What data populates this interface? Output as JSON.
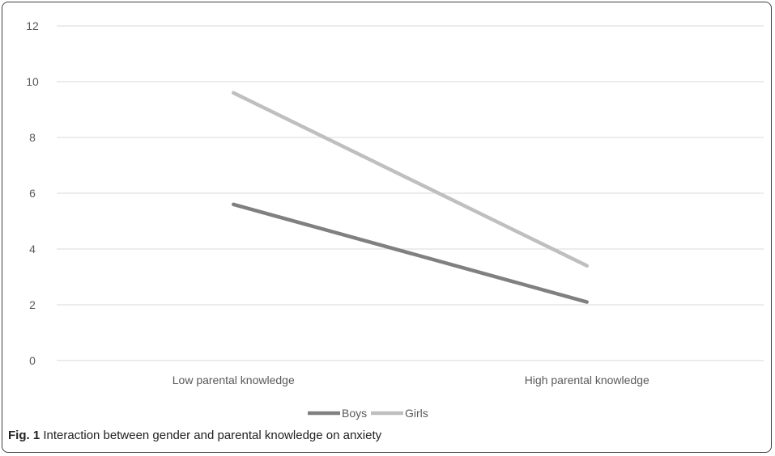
{
  "chart_data": {
    "type": "line",
    "categories": [
      "Low parental knowledge",
      "High parental knowledge"
    ],
    "series": [
      {
        "name": "Boys",
        "values": [
          5.6,
          2.1
        ],
        "color": "#808080"
      },
      {
        "name": "Girls",
        "values": [
          9.6,
          3.4
        ],
        "color": "#bfbfbf"
      }
    ],
    "yticks": [
      "0",
      "2",
      "4",
      "6",
      "8",
      "10",
      "12"
    ],
    "ylim": [
      0,
      12
    ],
    "grid": true,
    "gridColor": "#d9d9d9",
    "legend_position": "bottom"
  },
  "caption": {
    "label": "Fig. 1",
    "text": "Interaction between gender and parental knowledge on anxiety"
  }
}
